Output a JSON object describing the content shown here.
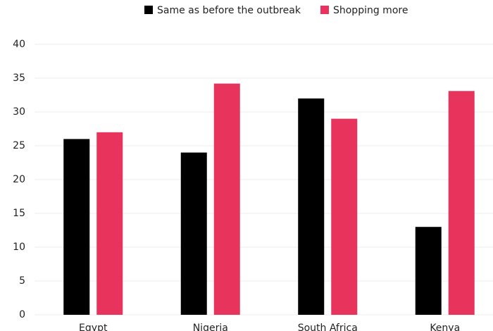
{
  "chart_data": {
    "type": "bar",
    "categories": [
      "Egypt",
      "Nigeria",
      "South Africa",
      "Kenya"
    ],
    "series": [
      {
        "name": "Same as before the outbreak",
        "color": "#000000",
        "values": [
          26,
          24,
          32,
          13
        ]
      },
      {
        "name": "Shopping more",
        "color": "#e8335d",
        "values": [
          27,
          34.2,
          29,
          33.1
        ]
      }
    ],
    "ylim": [
      0,
      40
    ],
    "yticks": [
      0,
      5,
      10,
      15,
      20,
      25,
      30,
      35,
      40
    ],
    "grid": true,
    "legend": "top"
  }
}
